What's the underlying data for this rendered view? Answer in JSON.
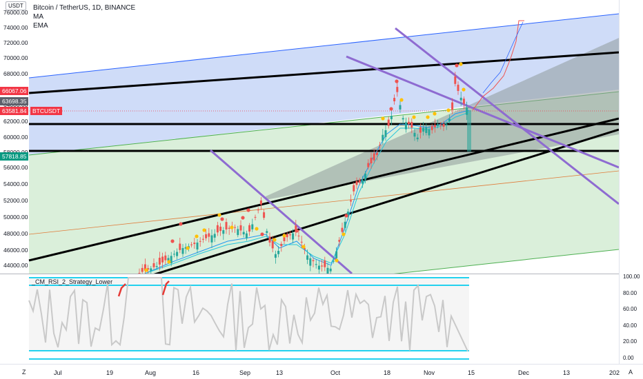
{
  "header": {
    "currency_badge": "USDT",
    "title": "Bitcoin / TetherUS, 1D, BINANCE",
    "indicators": [
      "MA",
      "EMA"
    ]
  },
  "price_axis": {
    "ticks": [
      "76000.00",
      "74000.00",
      "72000.00",
      "70000.00",
      "68000.00",
      "66000.00",
      "64000.00",
      "62000.00",
      "60000.00",
      "58000.00",
      "56000.00",
      "54000.00",
      "52000.00",
      "50000.00",
      "48000.00",
      "46000.00",
      "44000.00"
    ],
    "badges": [
      {
        "label": "66067.06",
        "color": "#f23645"
      },
      {
        "label": "63698.35",
        "color": "#5d606b"
      },
      {
        "label": "63581.84",
        "color": "#f23645"
      },
      {
        "label": "57818.85",
        "color": "#089981"
      }
    ],
    "symbol_tag": "BTCUSDT"
  },
  "indicator_pane": {
    "title": "_CM_RSI_2_Strategy_Lower",
    "ticks": [
      "100.00",
      "80.00",
      "60.00",
      "40.00",
      "20.00",
      "0.00"
    ]
  },
  "time_axis": {
    "labels": [
      "Jul",
      "19",
      "Aug",
      "16",
      "Sep",
      "13",
      "Oct",
      "18",
      "Nov",
      "15",
      "Dec",
      "13",
      "202"
    ],
    "left_button": "Z",
    "right_button": "A"
  },
  "colors": {
    "up": "#26a69a",
    "down": "#ef5350",
    "channel_blue": "#2962ff",
    "fib_purple": "#8e6bd1",
    "rsi_cyan": "#22d1ee"
  },
  "chart_data": {
    "type": "candlestick",
    "symbol": "BTCUSDT",
    "timeframe": "1D",
    "exchange": "BINANCE",
    "ylim": [
      43000,
      76500
    ],
    "levels": {
      "current_price": 63581.84,
      "high_line": 66067.06,
      "mid_line": 63698.35,
      "low_line": 57818.85
    },
    "indicator": {
      "name": "_CM_RSI_2_Strategy_Lower",
      "ylim": [
        0,
        100
      ],
      "overbought": 90,
      "oversold": 10
    }
  }
}
